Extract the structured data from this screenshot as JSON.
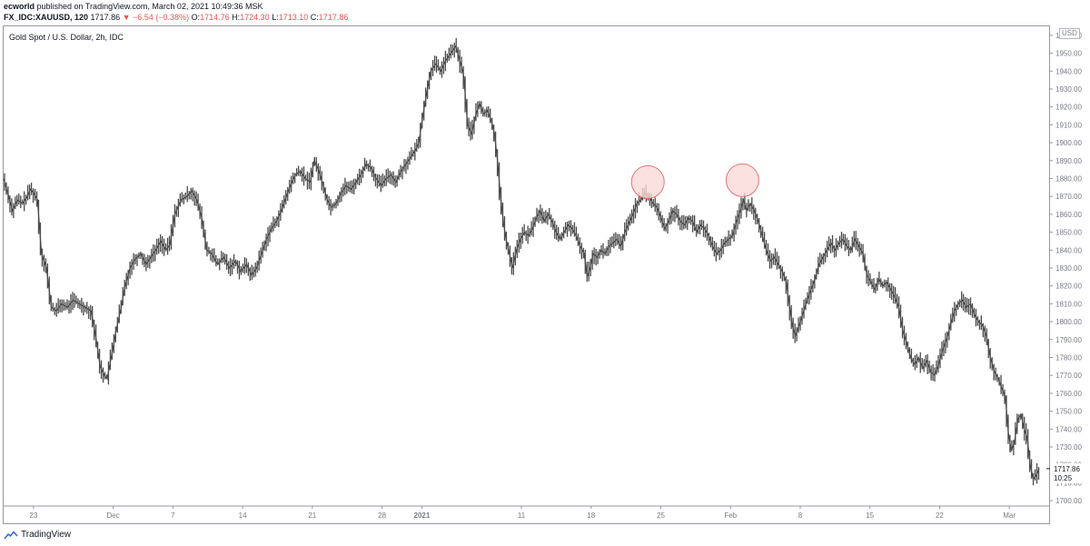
{
  "header": {
    "publisher": "ecworld",
    "published_text": " published on TradingView.com, March 02, 2021 10:49:36 MSK",
    "symbol": "FX_IDC:XAUUSD, 120",
    "last": "1717.86",
    "change": "▼ −6.54 (−0.38%)",
    "o_label": "O:",
    "o_value": "1714.76",
    "h_label": "H:",
    "h_value": "1724.30",
    "l_label": "L:",
    "l_value": "1713.10",
    "c_label": "C:",
    "c_value": "1717.86"
  },
  "legend": "Gold Spot / U.S. Dollar, 2h, IDC",
  "currency": "USD",
  "footer": {
    "brand": "TradingView",
    "icon": "tradingview-logo-icon"
  },
  "colors": {
    "candle": "#4a4a4a",
    "axis": "#787b86",
    "marker_fill": "#fbdada",
    "marker_stroke": "#e57373",
    "last_price_bg": "#131722"
  },
  "chart_data": {
    "type": "line",
    "title": "Gold Spot / U.S. Dollar, 2h, IDC",
    "xlabel": "",
    "ylabel": "",
    "ylim": [
      1697,
      1965
    ],
    "y_ticks": [
      1700,
      1710,
      1720,
      1730,
      1740,
      1750,
      1760,
      1770,
      1780,
      1790,
      1800,
      1810,
      1820,
      1830,
      1840,
      1850,
      1860,
      1870,
      1880,
      1890,
      1900,
      1910,
      1920,
      1930,
      1940,
      1950,
      1960
    ],
    "x_ticks": [
      {
        "label": "23",
        "day": 0
      },
      {
        "label": "Dec",
        "day": 8
      },
      {
        "label": "7",
        "day": 14
      },
      {
        "label": "14",
        "day": 21
      },
      {
        "label": "21",
        "day": 28
      },
      {
        "label": "28",
        "day": 35
      },
      {
        "label": "2021",
        "day": 39
      },
      {
        "label": "11",
        "day": 49
      },
      {
        "label": "18",
        "day": 56
      },
      {
        "label": "25",
        "day": 63
      },
      {
        "label": "Feb",
        "day": 70
      },
      {
        "label": "8",
        "day": 77
      },
      {
        "label": "15",
        "day": 84
      },
      {
        "label": "22",
        "day": 91
      },
      {
        "label": "Mar",
        "day": 98
      }
    ],
    "x_range": [
      -3,
      102
    ],
    "series": [
      {
        "points": [
          [
            -3,
            1880
          ],
          [
            -2.6,
            1872
          ],
          [
            -2.1,
            1862
          ],
          [
            -1.6,
            1868
          ],
          [
            -1.1,
            1866
          ],
          [
            -0.6,
            1870
          ],
          [
            -0.3,
            1874
          ],
          [
            0,
            1872
          ],
          [
            0.4,
            1868
          ],
          [
            0.8,
            1838
          ],
          [
            1.3,
            1830
          ],
          [
            1.8,
            1808
          ],
          [
            2.3,
            1806
          ],
          [
            2.8,
            1810
          ],
          [
            3.4,
            1808
          ],
          [
            4.0,
            1812
          ],
          [
            4.6,
            1810
          ],
          [
            5.2,
            1808
          ],
          [
            5.8,
            1806
          ],
          [
            6.3,
            1790
          ],
          [
            6.7,
            1775
          ],
          [
            7.1,
            1770
          ],
          [
            7.4,
            1768
          ],
          [
            7.8,
            1780
          ],
          [
            8.3,
            1795
          ],
          [
            8.8,
            1808
          ],
          [
            9.2,
            1820
          ],
          [
            9.7,
            1830
          ],
          [
            10.2,
            1835
          ],
          [
            10.8,
            1838
          ],
          [
            11.3,
            1832
          ],
          [
            11.8,
            1836
          ],
          [
            12.3,
            1840
          ],
          [
            12.8,
            1845
          ],
          [
            13.3,
            1840
          ],
          [
            13.7,
            1843
          ],
          [
            14.2,
            1860
          ],
          [
            14.8,
            1868
          ],
          [
            15.4,
            1870
          ],
          [
            15.9,
            1873
          ],
          [
            16.4,
            1868
          ],
          [
            16.9,
            1858
          ],
          [
            17.4,
            1840
          ],
          [
            17.9,
            1838
          ],
          [
            18.5,
            1832
          ],
          [
            19.1,
            1836
          ],
          [
            19.7,
            1830
          ],
          [
            20.3,
            1834
          ],
          [
            20.8,
            1828
          ],
          [
            21.4,
            1832
          ],
          [
            21.9,
            1826
          ],
          [
            22.4,
            1830
          ],
          [
            22.9,
            1838
          ],
          [
            23.4,
            1846
          ],
          [
            23.9,
            1852
          ],
          [
            24.4,
            1856
          ],
          [
            24.9,
            1862
          ],
          [
            25.4,
            1870
          ],
          [
            25.8,
            1876
          ],
          [
            26.3,
            1882
          ],
          [
            26.8,
            1884
          ],
          [
            27.3,
            1880
          ],
          [
            27.8,
            1878
          ],
          [
            28.2,
            1890
          ],
          [
            28.6,
            1885
          ],
          [
            29.0,
            1878
          ],
          [
            29.5,
            1868
          ],
          [
            29.9,
            1864
          ],
          [
            30.4,
            1866
          ],
          [
            30.9,
            1872
          ],
          [
            31.4,
            1876
          ],
          [
            31.9,
            1874
          ],
          [
            32.4,
            1878
          ],
          [
            32.9,
            1882
          ],
          [
            33.4,
            1888
          ],
          [
            33.9,
            1886
          ],
          [
            34.4,
            1880
          ],
          [
            34.9,
            1876
          ],
          [
            35.4,
            1880
          ],
          [
            35.9,
            1882
          ],
          [
            36.4,
            1878
          ],
          [
            36.9,
            1884
          ],
          [
            37.4,
            1888
          ],
          [
            37.9,
            1892
          ],
          [
            38.4,
            1896
          ],
          [
            38.7,
            1900
          ],
          [
            39.1,
            1915
          ],
          [
            39.5,
            1928
          ],
          [
            39.9,
            1940
          ],
          [
            40.4,
            1944
          ],
          [
            40.9,
            1940
          ],
          [
            41.4,
            1946
          ],
          [
            41.9,
            1950
          ],
          [
            42.4,
            1954
          ],
          [
            42.8,
            1946
          ],
          [
            43.2,
            1938
          ],
          [
            43.6,
            1910
          ],
          [
            44.0,
            1905
          ],
          [
            44.4,
            1915
          ],
          [
            44.8,
            1922
          ],
          [
            45.2,
            1916
          ],
          [
            45.6,
            1918
          ],
          [
            46.0,
            1912
          ],
          [
            46.3,
            1905
          ],
          [
            46.6,
            1890
          ],
          [
            46.9,
            1870
          ],
          [
            47.2,
            1855
          ],
          [
            47.5,
            1845
          ],
          [
            47.8,
            1838
          ],
          [
            48.1,
            1830
          ],
          [
            48.5,
            1840
          ],
          [
            48.9,
            1846
          ],
          [
            49.3,
            1850
          ],
          [
            49.7,
            1848
          ],
          [
            50.1,
            1852
          ],
          [
            50.5,
            1858
          ],
          [
            50.9,
            1862
          ],
          [
            51.3,
            1856
          ],
          [
            51.7,
            1860
          ],
          [
            52.1,
            1856
          ],
          [
            52.5,
            1850
          ],
          [
            52.9,
            1846
          ],
          [
            53.3,
            1850
          ],
          [
            53.7,
            1854
          ],
          [
            54.1,
            1852
          ],
          [
            54.5,
            1848
          ],
          [
            54.9,
            1842
          ],
          [
            55.3,
            1838
          ],
          [
            55.6,
            1825
          ],
          [
            55.9,
            1830
          ],
          [
            56.2,
            1838
          ],
          [
            56.6,
            1836
          ],
          [
            57.0,
            1840
          ],
          [
            57.4,
            1838
          ],
          [
            57.8,
            1842
          ],
          [
            58.2,
            1844
          ],
          [
            58.6,
            1846
          ],
          [
            59.0,
            1842
          ],
          [
            59.4,
            1850
          ],
          [
            59.8,
            1855
          ],
          [
            60.2,
            1860
          ],
          [
            60.6,
            1866
          ],
          [
            61.0,
            1868
          ],
          [
            61.4,
            1872
          ],
          [
            61.8,
            1870
          ],
          [
            62.2,
            1866
          ],
          [
            62.6,
            1864
          ],
          [
            63.0,
            1858
          ],
          [
            63.4,
            1852
          ],
          [
            63.8,
            1856
          ],
          [
            64.2,
            1862
          ],
          [
            64.6,
            1860
          ],
          [
            65.0,
            1856
          ],
          [
            65.4,
            1854
          ],
          [
            65.8,
            1858
          ],
          [
            66.2,
            1856
          ],
          [
            66.6,
            1850
          ],
          [
            67.0,
            1854
          ],
          [
            67.4,
            1852
          ],
          [
            67.8,
            1848
          ],
          [
            68.2,
            1842
          ],
          [
            68.6,
            1838
          ],
          [
            69.0,
            1840
          ],
          [
            69.4,
            1844
          ],
          [
            69.8,
            1846
          ],
          [
            70.2,
            1848
          ],
          [
            70.6,
            1856
          ],
          [
            71.0,
            1862
          ],
          [
            71.3,
            1868
          ],
          [
            71.6,
            1862
          ],
          [
            72.0,
            1866
          ],
          [
            72.4,
            1862
          ],
          [
            72.8,
            1856
          ],
          [
            73.2,
            1848
          ],
          [
            73.6,
            1840
          ],
          [
            74.0,
            1834
          ],
          [
            74.4,
            1836
          ],
          [
            74.8,
            1832
          ],
          [
            75.2,
            1828
          ],
          [
            75.6,
            1822
          ],
          [
            75.9,
            1810
          ],
          [
            76.2,
            1798
          ],
          [
            76.5,
            1792
          ],
          [
            76.9,
            1798
          ],
          [
            77.3,
            1805
          ],
          [
            77.7,
            1812
          ],
          [
            78.1,
            1818
          ],
          [
            78.5,
            1824
          ],
          [
            78.9,
            1832
          ],
          [
            79.3,
            1836
          ],
          [
            79.7,
            1840
          ],
          [
            80.1,
            1844
          ],
          [
            80.5,
            1840
          ],
          [
            80.9,
            1844
          ],
          [
            81.3,
            1846
          ],
          [
            81.7,
            1842
          ],
          [
            82.1,
            1840
          ],
          [
            82.5,
            1846
          ],
          [
            82.9,
            1842
          ],
          [
            83.3,
            1838
          ],
          [
            83.7,
            1826
          ],
          [
            84.1,
            1822
          ],
          [
            84.5,
            1818
          ],
          [
            84.9,
            1824
          ],
          [
            85.3,
            1820
          ],
          [
            85.7,
            1822
          ],
          [
            86.1,
            1818
          ],
          [
            86.5,
            1814
          ],
          [
            86.9,
            1808
          ],
          [
            87.3,
            1795
          ],
          [
            87.7,
            1788
          ],
          [
            88.1,
            1780
          ],
          [
            88.5,
            1776
          ],
          [
            88.9,
            1780
          ],
          [
            89.3,
            1774
          ],
          [
            89.7,
            1778
          ],
          [
            90.1,
            1772
          ],
          [
            90.5,
            1770
          ],
          [
            90.9,
            1776
          ],
          [
            91.3,
            1784
          ],
          [
            91.7,
            1790
          ],
          [
            92.1,
            1798
          ],
          [
            92.5,
            1806
          ],
          [
            92.9,
            1810
          ],
          [
            93.3,
            1812
          ],
          [
            93.7,
            1808
          ],
          [
            94.1,
            1810
          ],
          [
            94.5,
            1804
          ],
          [
            94.9,
            1800
          ],
          [
            95.3,
            1798
          ],
          [
            95.7,
            1792
          ],
          [
            96.1,
            1780
          ],
          [
            96.5,
            1772
          ],
          [
            96.9,
            1768
          ],
          [
            97.3,
            1762
          ],
          [
            97.6,
            1758
          ],
          [
            97.9,
            1738
          ],
          [
            98.2,
            1728
          ],
          [
            98.5,
            1732
          ],
          [
            98.9,
            1746
          ],
          [
            99.2,
            1748
          ],
          [
            99.5,
            1740
          ],
          [
            99.8,
            1735
          ],
          [
            100.1,
            1720
          ],
          [
            100.4,
            1712
          ],
          [
            100.7,
            1714
          ],
          [
            101.0,
            1717.86
          ]
        ]
      }
    ],
    "markers": [
      {
        "day": 61.7,
        "price": 1878
      },
      {
        "day": 71.2,
        "price": 1879
      }
    ],
    "last_price": {
      "value": "1717.86",
      "timer": "10:25"
    },
    "grid": false,
    "legend_position": "none"
  }
}
